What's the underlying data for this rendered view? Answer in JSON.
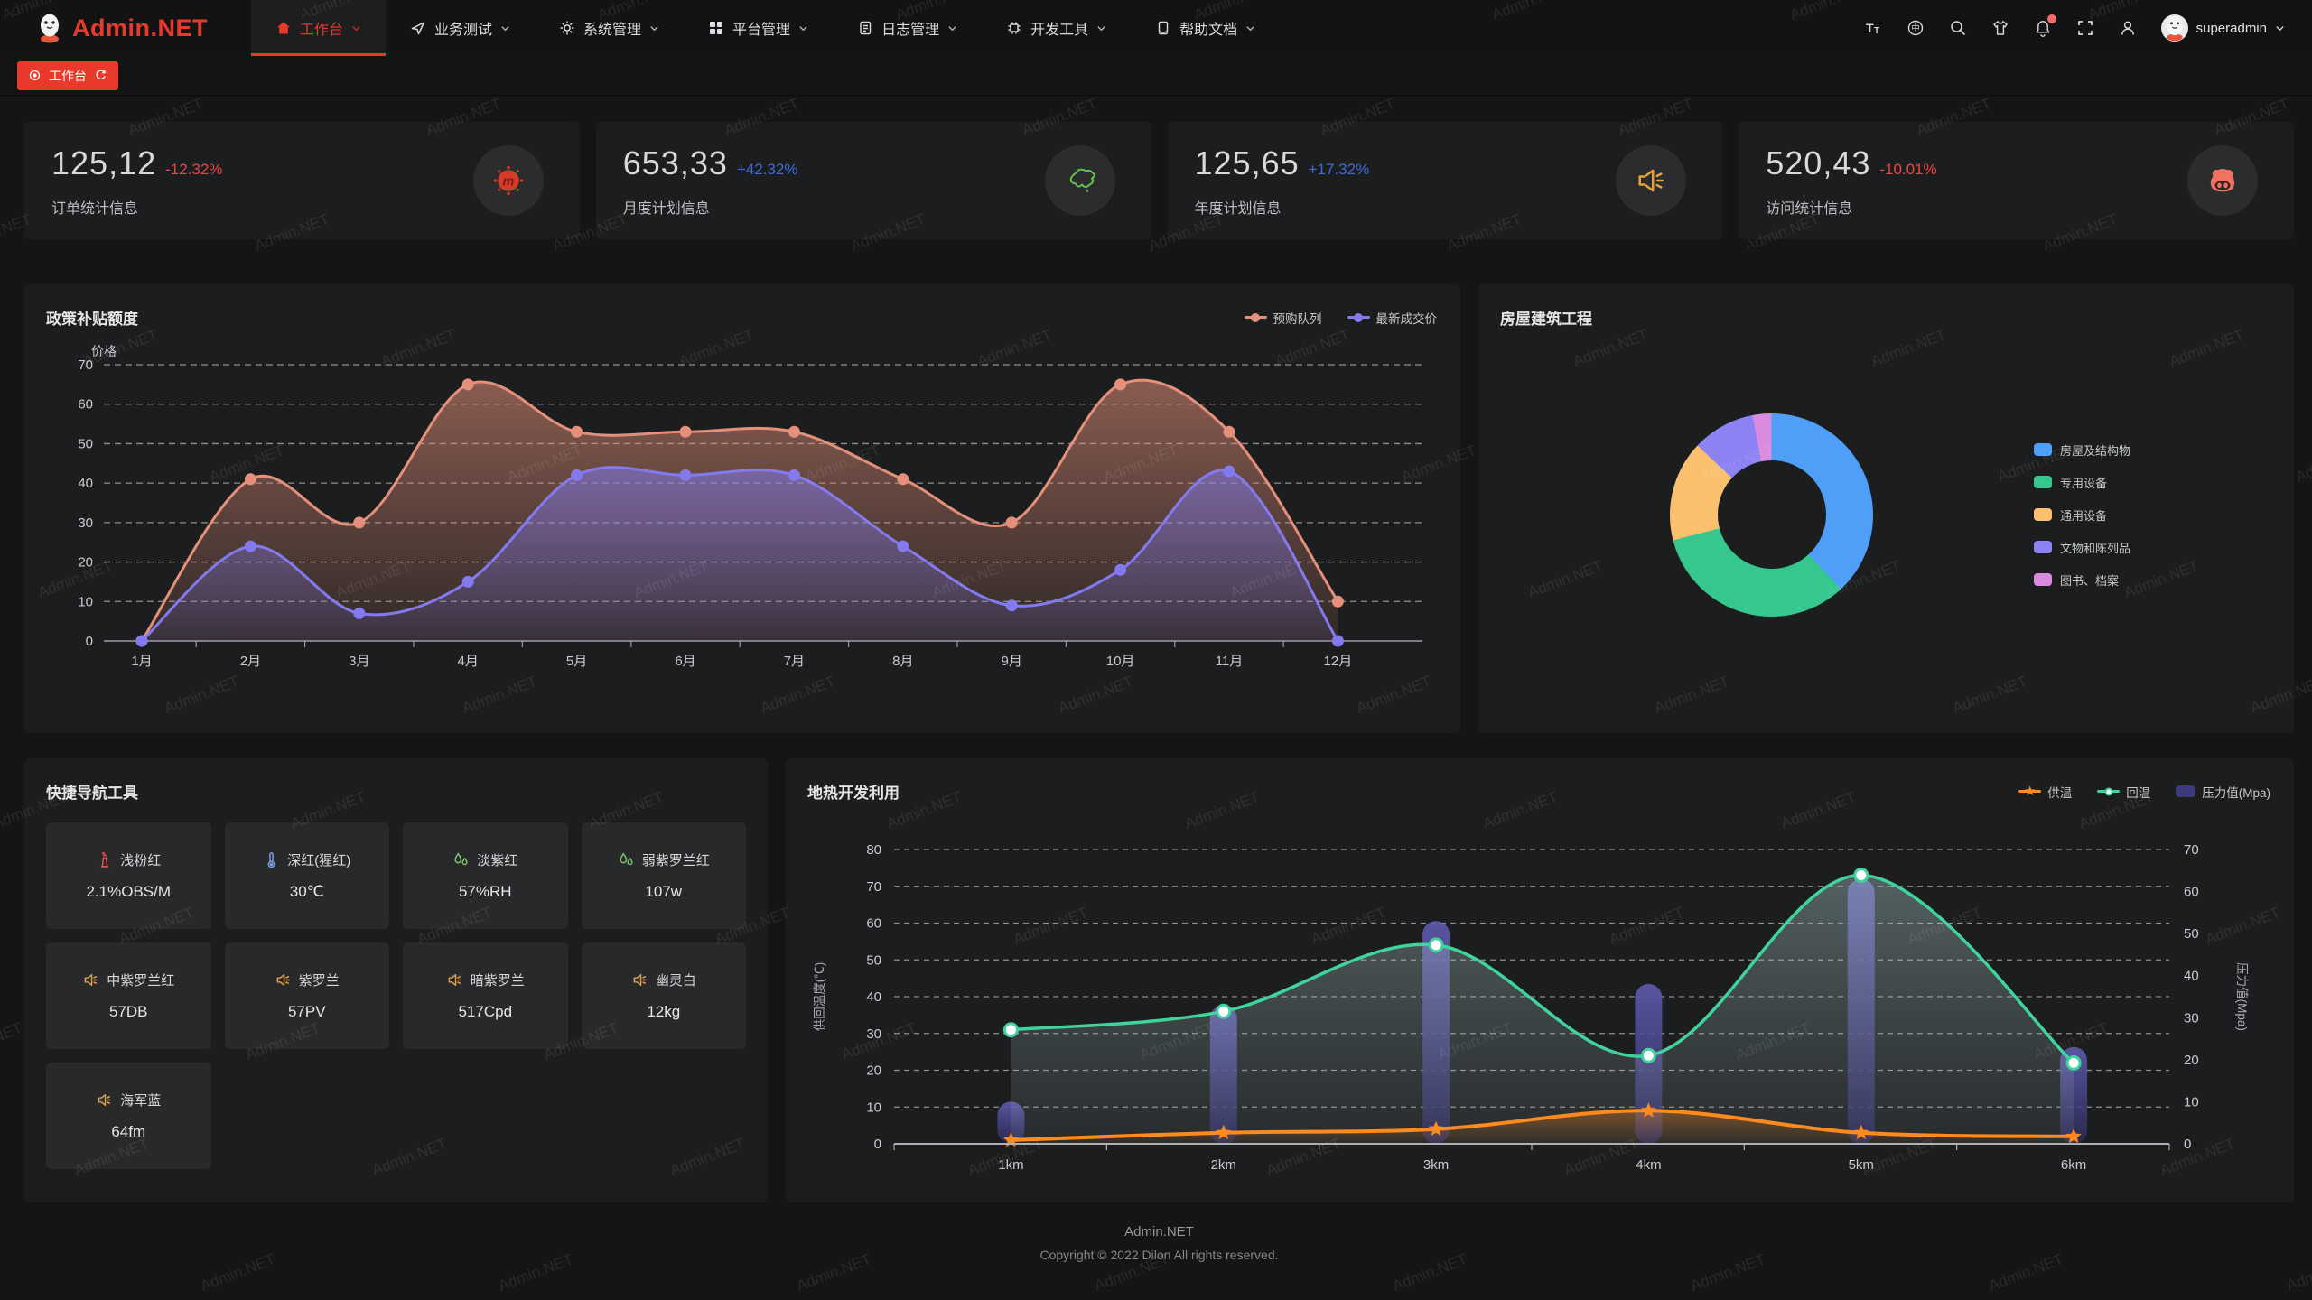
{
  "navbar": {
    "logo": "Admin.NET",
    "menus": [
      {
        "label": "工作台",
        "icon": "home-icon",
        "active": true
      },
      {
        "label": "业务测试",
        "icon": "navigation-icon",
        "active": false
      },
      {
        "label": "系统管理",
        "icon": "gear-icon",
        "active": false
      },
      {
        "label": "平台管理",
        "icon": "grid-icon",
        "active": false
      },
      {
        "label": "日志管理",
        "icon": "log-icon",
        "active": false
      },
      {
        "label": "开发工具",
        "icon": "chip-icon",
        "active": false
      },
      {
        "label": "帮助文档",
        "icon": "doc-icon",
        "active": false
      }
    ],
    "action_icons": [
      "font-size-icon",
      "language-icon",
      "search-icon",
      "theme-icon",
      "bell-icon",
      "fullscreen-icon",
      "user-icon"
    ],
    "notification_badge": true,
    "user": "superadmin",
    "accent": "#e8392b"
  },
  "tabbar": {
    "tabs": [
      {
        "label": "工作台",
        "active": true
      }
    ]
  },
  "stat_cards": [
    {
      "value": "125,12",
      "delta": "-12.32%",
      "delta_color": "#ef4343",
      "label": "订单统计信息",
      "icon": "medium-icon",
      "icon_color": "#d63a2a"
    },
    {
      "value": "653,33",
      "delta": "+42.32%",
      "delta_color": "#3d6be0",
      "label": "月度计划信息",
      "icon": "china-map-icon",
      "icon_color": "#5fbf49"
    },
    {
      "value": "125,65",
      "delta": "+17.32%",
      "delta_color": "#3d6be0",
      "label": "年度计划信息",
      "icon": "speaker-icon",
      "icon_color": "#e6a23c"
    },
    {
      "value": "520,43",
      "delta": "-10.01%",
      "delta_color": "#ef4343",
      "label": "访问统计信息",
      "icon": "gitee-cat-icon",
      "icon_color": "#ee7265"
    }
  ],
  "chart_data": [
    {
      "type": "area",
      "title": "政策补贴额度",
      "ylabel": "价格",
      "categories": [
        "1月",
        "2月",
        "3月",
        "4月",
        "5月",
        "6月",
        "7月",
        "8月",
        "9月",
        "10月",
        "11月",
        "12月"
      ],
      "ylim": [
        0,
        70
      ],
      "ytick_step": 10,
      "grid": "dashed",
      "legend_position": "top-right",
      "series": [
        {
          "name": "预购队列",
          "color": "#e4907a",
          "values": [
            0,
            41,
            30,
            65,
            53,
            53,
            53,
            41,
            30,
            65,
            53,
            10
          ]
        },
        {
          "name": "最新成交价",
          "color": "#837af0",
          "values": [
            0,
            24,
            7,
            15,
            42,
            42,
            42,
            24,
            9,
            18,
            43,
            0
          ]
        }
      ]
    },
    {
      "type": "pie",
      "title": "房屋建筑工程",
      "hole": true,
      "legend_position": "right",
      "slices": [
        {
          "label": "房屋及结构物",
          "color": "#4f9ef8",
          "value": 38
        },
        {
          "label": "专用设备",
          "color": "#36c78e",
          "value": 33
        },
        {
          "label": "通用设备",
          "color": "#fac06e",
          "value": 16
        },
        {
          "label": "文物和陈列品",
          "color": "#8c82f4",
          "value": 10
        },
        {
          "label": "图书、档案",
          "color": "#da8be0",
          "value": 3
        }
      ]
    },
    {
      "type": "mixed",
      "title": "地热开发利用",
      "categories": [
        "1km",
        "2km",
        "3km",
        "4km",
        "5km",
        "6km"
      ],
      "left_axis": {
        "label": "供回温度(℃)",
        "min": 0,
        "max": 80,
        "step": 10
      },
      "right_axis": {
        "label": "压力值(Mpa)",
        "min": 0,
        "max": 70,
        "step": 10
      },
      "grid": "dashed",
      "legend_position": "top-right",
      "series": [
        {
          "name": "供温",
          "type": "line",
          "axis": "left",
          "marker": "star",
          "color": "#ff8a1e",
          "values": [
            1,
            3,
            4,
            9,
            3,
            2
          ]
        },
        {
          "name": "回温",
          "type": "line",
          "axis": "left",
          "marker": "circle",
          "color": "#3ed49c",
          "values": [
            31,
            36,
            54,
            24,
            73,
            22
          ]
        },
        {
          "name": "压力值(Mpa)",
          "type": "bar",
          "axis": "right",
          "color": "#47449a",
          "values": [
            10,
            33,
            53,
            38,
            63,
            23
          ]
        }
      ]
    }
  ],
  "quick_nav": {
    "title": "快捷导航工具",
    "items": [
      {
        "name": "浅粉红",
        "value": "2.1%OBS/M",
        "icon": "chimney-icon",
        "icon_color": "#e05252"
      },
      {
        "name": "深红(猩红)",
        "value": "30℃",
        "icon": "thermometer-icon",
        "icon_color": "#7b9fe0"
      },
      {
        "name": "淡紫红",
        "value": "57%RH",
        "icon": "humidity-icon",
        "icon_color": "#7cc26a"
      },
      {
        "name": "弱紫罗兰红",
        "value": "107w",
        "icon": "humidity-icon",
        "icon_color": "#7cc26a"
      },
      {
        "name": "中紫罗兰红",
        "value": "57DB",
        "icon": "speaker-icon",
        "icon_color": "#e0a14f"
      },
      {
        "name": "紫罗兰",
        "value": "57PV",
        "icon": "speaker-icon",
        "icon_color": "#e0a14f"
      },
      {
        "name": "暗紫罗兰",
        "value": "517Cpd",
        "icon": "speaker-icon",
        "icon_color": "#e0a14f"
      },
      {
        "name": "幽灵白",
        "value": "12kg",
        "icon": "speaker-icon",
        "icon_color": "#e0a14f"
      },
      {
        "name": "海军蓝",
        "value": "64fm",
        "icon": "speaker-icon",
        "icon_color": "#e0a14f"
      }
    ]
  },
  "footer": {
    "title": "Admin.NET",
    "copyright": "Copyright © 2022 Dilon All rights reserved."
  },
  "watermark": {
    "text": "Admin.NET"
  }
}
